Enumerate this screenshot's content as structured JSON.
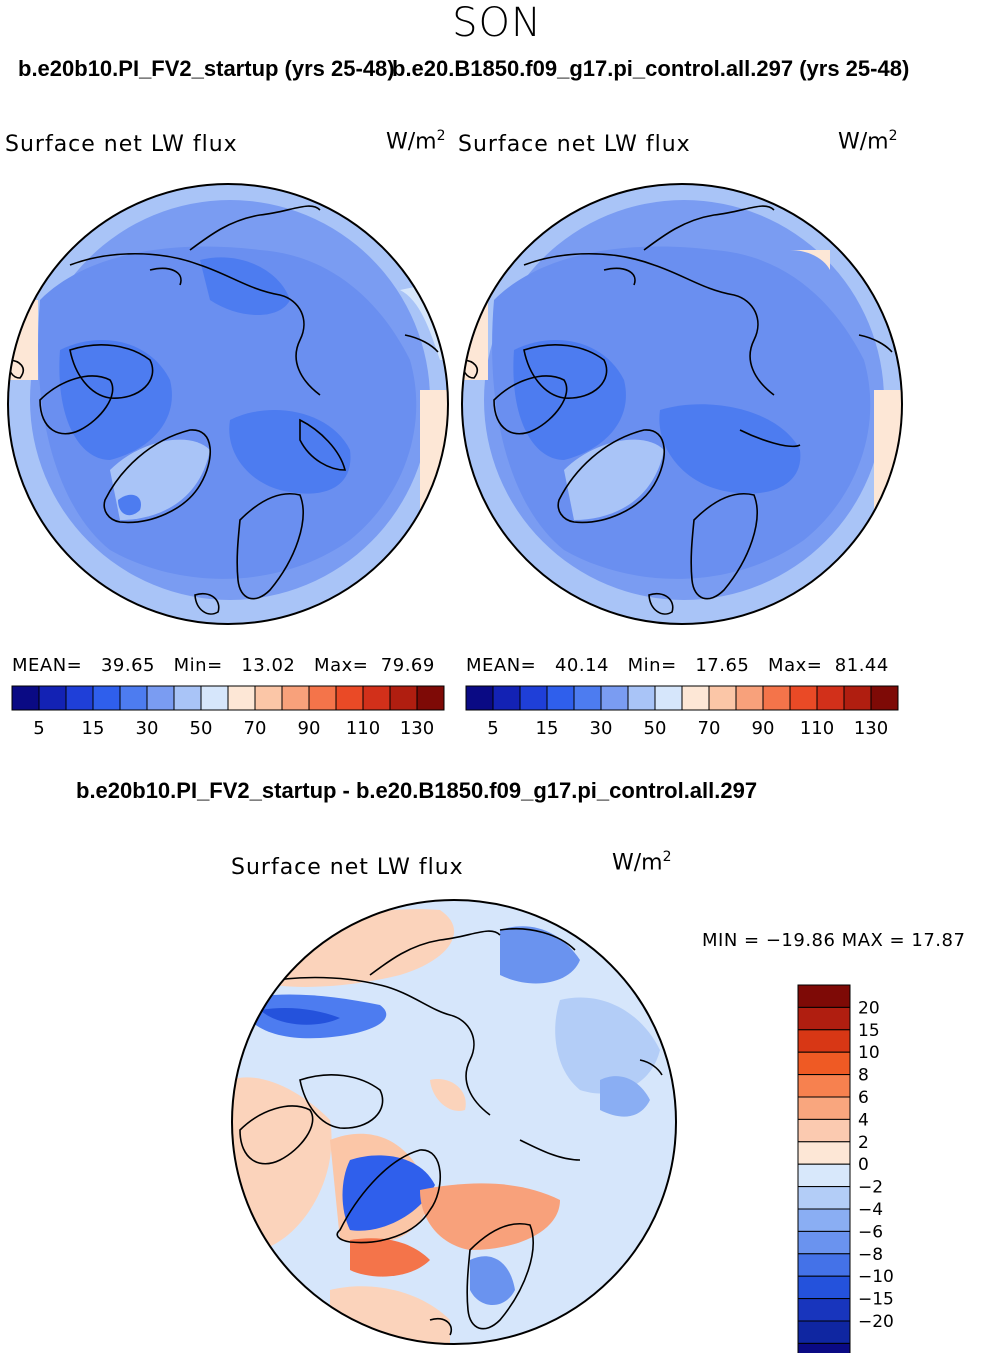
{
  "season": "SON",
  "case_titles": {
    "left": "b.e20b10.PI_FV2_startup (yrs 25-48)",
    "right": "b.e20.B1850.f09_g17.pi_control.all.297 (yrs 25-48)",
    "diff": "b.e20b10.PI_FV2_startup - b.e20.B1850.f09_g17.pi_control.all.297"
  },
  "variable": "Surface net LW flux",
  "units_base": "W/m",
  "units_exp": "2",
  "panels": {
    "left": {
      "mean_label": "MEAN=",
      "mean": "39.65",
      "min_label": "Min=",
      "min": "13.02",
      "max_label": "Max=",
      "max": "79.69"
    },
    "right": {
      "mean_label": "MEAN=",
      "mean": "40.14",
      "min_label": "Min=",
      "min": "17.65",
      "max_label": "Max=",
      "max": "81.44"
    },
    "diff": {
      "stats": "MIN = −19.86  MAX =   17.87"
    }
  },
  "abs_colorbar": {
    "colors": [
      "#0a0a84",
      "#1322b4",
      "#1f3fd8",
      "#2f5fec",
      "#4d7cf0",
      "#7a9cf2",
      "#a9c4f7",
      "#d6e6fb",
      "#fde7d6",
      "#fbc6a7",
      "#f8a17b",
      "#f4744a",
      "#ea4a26",
      "#d2301a",
      "#b01e10",
      "#7e0a06"
    ],
    "ticks": [
      "5",
      "15",
      "30",
      "50",
      "70",
      "90",
      "110",
      "130"
    ]
  },
  "diff_colorbar": {
    "colors": [
      "#7e0a06",
      "#b01e10",
      "#d83715",
      "#ef5a24",
      "#f7814f",
      "#f9a67e",
      "#fbcab0",
      "#fde7d6",
      "#d8e8fb",
      "#b3cdf7",
      "#8aaef3",
      "#6a93ef",
      "#4472e8",
      "#2452dc",
      "#1835bd",
      "#0f26a1",
      "#0a0a84"
    ],
    "ticks": [
      "20",
      "15",
      "10",
      "8",
      "6",
      "4",
      "2",
      "0",
      "−2",
      "−4",
      "−6",
      "−8",
      "−10",
      "−15",
      "−20"
    ]
  },
  "chart_data": {
    "type": "heatmap",
    "title": "SON",
    "maps": [
      {
        "name": "b.e20b10.PI_FV2_startup (yrs 25-48)",
        "field": "Surface net LW flux",
        "units": "W/m^2",
        "mean": 39.65,
        "min": 13.02,
        "max": 79.69
      },
      {
        "name": "b.e20.B1850.f09_g17.pi_control.all.297 (yrs 25-48)",
        "field": "Surface net LW flux",
        "units": "W/m^2",
        "mean": 40.14,
        "min": 17.65,
        "max": 81.44
      },
      {
        "name": "b.e20b10.PI_FV2_startup - b.e20.B1850.f09_g17.pi_control.all.297",
        "field": "Surface net LW flux",
        "units": "W/m^2",
        "min": -19.86,
        "max": 17.87
      }
    ]
  }
}
